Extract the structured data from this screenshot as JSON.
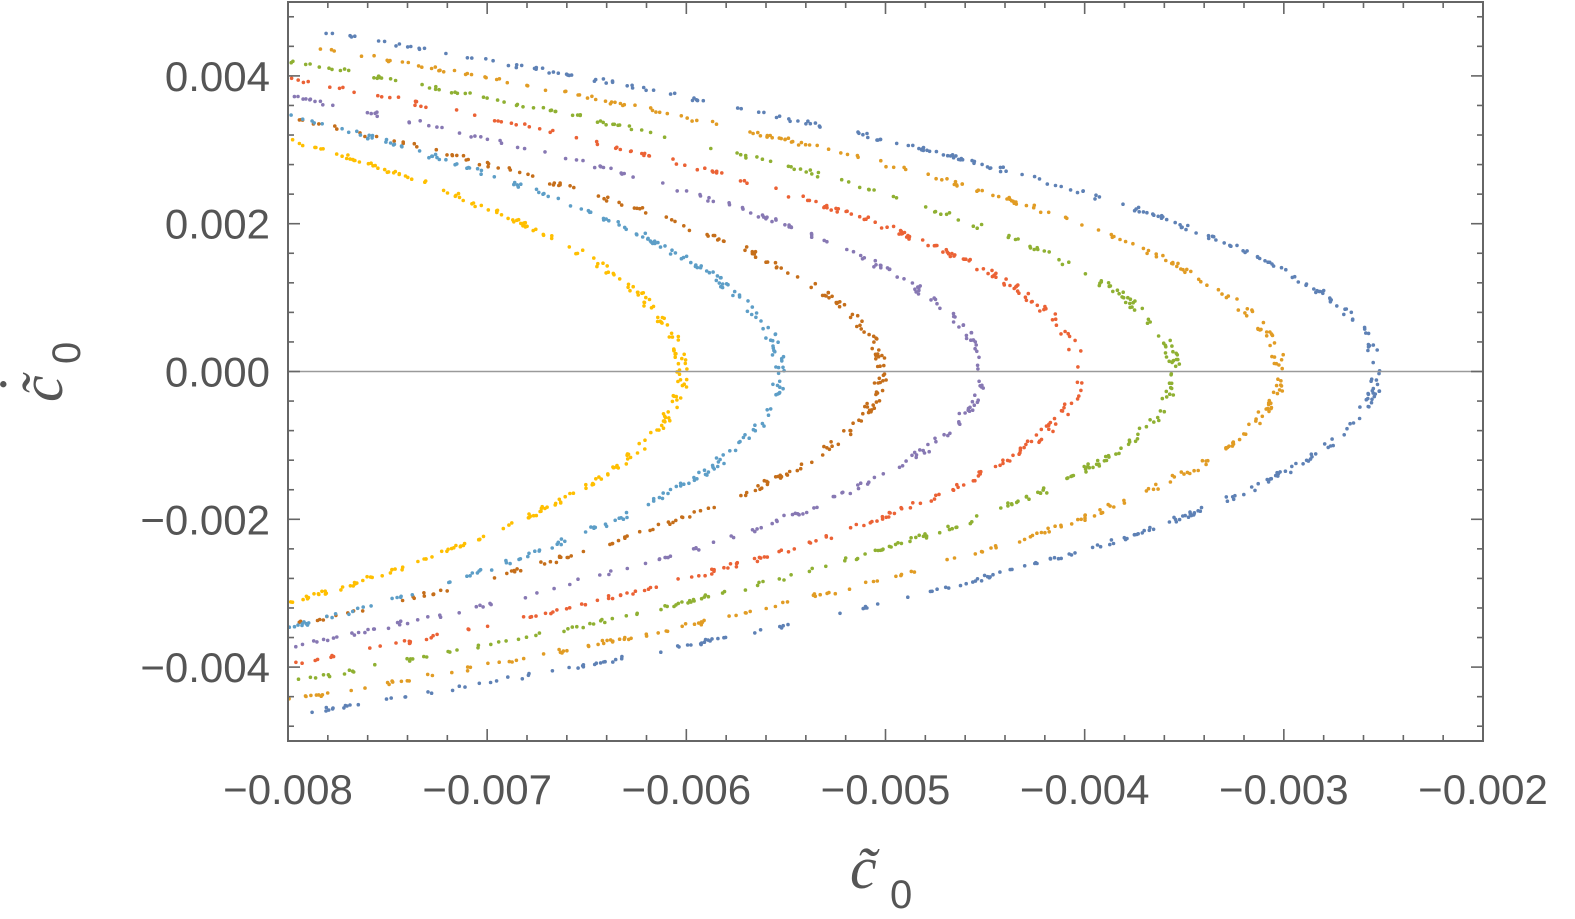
{
  "chart_data": {
    "type": "scatter",
    "title": "",
    "xlabel": "c̃0",
    "ylabel": "c̃̇0",
    "xlabel_parts": {
      "symbol": "c̃",
      "subscript": "0"
    },
    "ylabel_parts": {
      "symbol": "c̃",
      "dot": "˙",
      "subscript": "0"
    },
    "xlim": [
      -0.008,
      -0.002
    ],
    "ylim": [
      -0.005,
      0.005
    ],
    "x_ticks": [
      -0.008,
      -0.007,
      -0.006,
      -0.005,
      -0.004,
      -0.003,
      -0.002
    ],
    "x_tick_labels": [
      "−0.008",
      "−0.007",
      "−0.006",
      "−0.005",
      "−0.004",
      "−0.003",
      "−0.002"
    ],
    "y_ticks": [
      -0.004,
      -0.002,
      0.0,
      0.002,
      0.004
    ],
    "y_tick_labels": [
      "−0.004",
      "−0.002",
      "0.000",
      "0.002",
      "0.004"
    ],
    "zero_line": true,
    "grid": false,
    "legend": "none",
    "curve_model": "x = vertex_x - k * y^2 (left-opening parabolas)",
    "series": [
      {
        "name": "series-1",
        "color": "#5E81B5",
        "vertex_x": -0.00253,
        "k": 252,
        "y_range": [
          -0.0046,
          0.0046
        ],
        "points": 400
      },
      {
        "name": "series-2",
        "color": "#E19C24",
        "vertex_x": -0.00302,
        "k": 252,
        "y_range": [
          -0.0045,
          0.0045
        ],
        "points": 360
      },
      {
        "name": "series-3",
        "color": "#8FB032",
        "vertex_x": -0.00355,
        "k": 252,
        "y_range": [
          -0.0044,
          0.0044
        ],
        "points": 340
      },
      {
        "name": "series-4",
        "color": "#EB6235",
        "vertex_x": -0.00403,
        "k": 252,
        "y_range": [
          -0.0042,
          0.0042
        ],
        "points": 320
      },
      {
        "name": "series-5",
        "color": "#8778B3",
        "vertex_x": -0.00452,
        "k": 250,
        "y_range": [
          -0.004,
          0.004
        ],
        "points": 260
      },
      {
        "name": "series-6",
        "color": "#C56E1A",
        "vertex_x": -0.00502,
        "k": 252,
        "y_range": [
          -0.0038,
          0.0038
        ],
        "points": 280
      },
      {
        "name": "series-7",
        "color": "#5D9EC7",
        "vertex_x": -0.00553,
        "k": 205,
        "y_range": [
          -0.0036,
          0.0036
        ],
        "points": 260
      },
      {
        "name": "series-8",
        "color": "#FFBF00",
        "vertex_x": -0.00602,
        "k": 200,
        "y_range": [
          -0.0032,
          0.0032
        ],
        "points": 260
      }
    ]
  }
}
